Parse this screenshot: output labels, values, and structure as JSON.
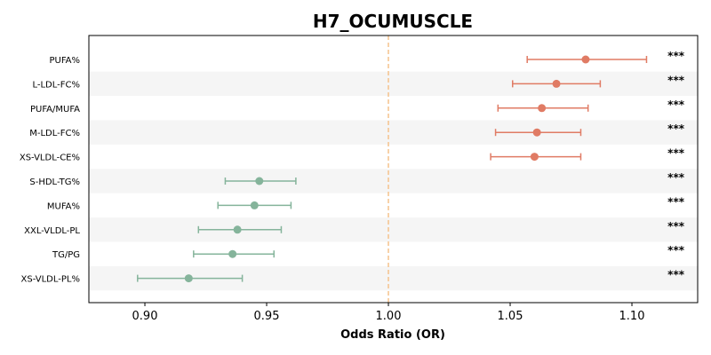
{
  "chart_data": {
    "type": "forest",
    "title": "H7_OCUMUSCLE",
    "xlabel": "Odds Ratio (OR)",
    "xlim": [
      0.877,
      1.127
    ],
    "xticks": [
      0.9,
      0.95,
      1.0,
      1.05,
      1.1
    ],
    "xtick_labels": [
      "0.90",
      "0.95",
      "1.00",
      "1.05",
      "1.10"
    ],
    "reference_line": 1.0,
    "colors": {
      "increase": "#e07b64",
      "decrease": "#85b49b",
      "reference": "#f5c38c",
      "band": "#f5f5f5"
    },
    "rows": [
      {
        "label": "PUFA%",
        "or": 1.081,
        "lo": 1.057,
        "hi": 1.106,
        "sig": "***"
      },
      {
        "label": "L-LDL-FC%",
        "or": 1.069,
        "lo": 1.051,
        "hi": 1.087,
        "sig": "***"
      },
      {
        "label": "PUFA/MUFA",
        "or": 1.063,
        "lo": 1.045,
        "hi": 1.082,
        "sig": "***"
      },
      {
        "label": "M-LDL-FC%",
        "or": 1.061,
        "lo": 1.044,
        "hi": 1.079,
        "sig": "***"
      },
      {
        "label": "XS-VLDL-CE%",
        "or": 1.06,
        "lo": 1.042,
        "hi": 1.079,
        "sig": "***"
      },
      {
        "label": "S-HDL-TG%",
        "or": 0.947,
        "lo": 0.933,
        "hi": 0.962,
        "sig": "***"
      },
      {
        "label": "MUFA%",
        "or": 0.945,
        "lo": 0.93,
        "hi": 0.96,
        "sig": "***"
      },
      {
        "label": "XXL-VLDL-PL",
        "or": 0.938,
        "lo": 0.922,
        "hi": 0.956,
        "sig": "***"
      },
      {
        "label": "TG/PG",
        "or": 0.936,
        "lo": 0.92,
        "hi": 0.953,
        "sig": "***"
      },
      {
        "label": "XS-VLDL-PL%",
        "or": 0.918,
        "lo": 0.897,
        "hi": 0.94,
        "sig": "***"
      }
    ]
  }
}
